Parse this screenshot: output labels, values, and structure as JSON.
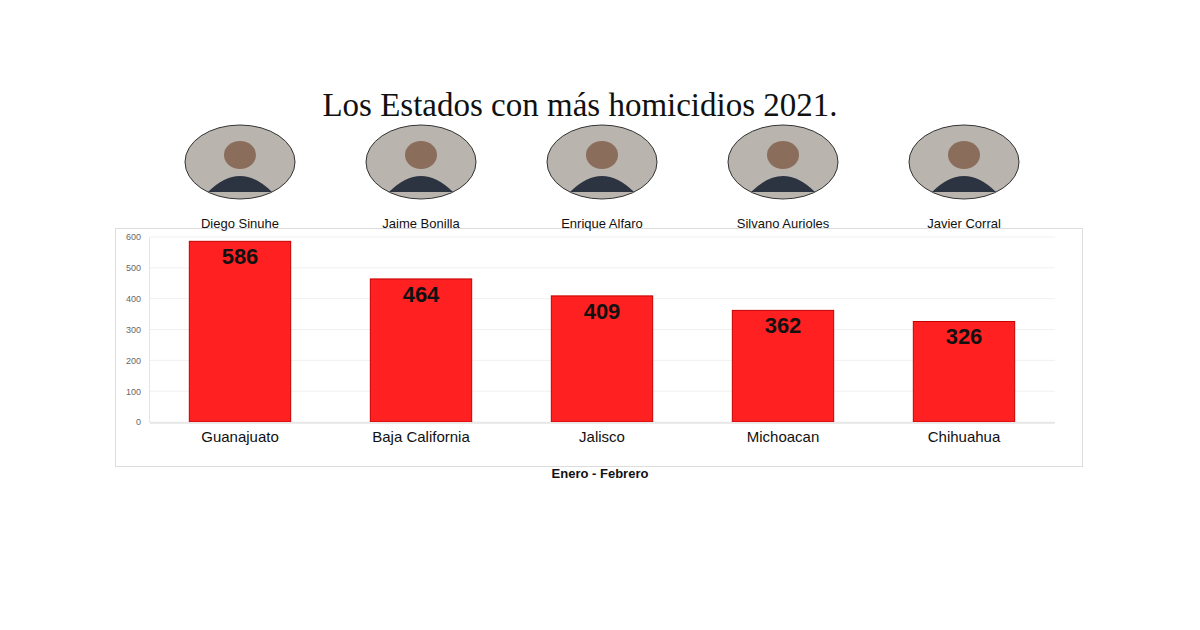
{
  "chart_data": {
    "type": "bar",
    "title": "Los Estados con más homicidios 2021.",
    "annotations": [
      "Diego Sinuhe",
      "Jaime Bonilla",
      "Enrique Alfaro",
      "Silvano Aurioles",
      "Javier Corral"
    ],
    "categories": [
      "Guanajuato",
      "Baja California",
      "Jalisco",
      "Michoacan",
      "Chihuahua"
    ],
    "values": [
      586,
      464,
      409,
      362,
      326
    ],
    "x_label": "Enero - Febrero",
    "color": "#ff2121",
    "ylim": [
      0,
      600
    ],
    "yticks": [
      0,
      100,
      200,
      300,
      400,
      500,
      600
    ],
    "grid": true,
    "data_labels": true
  }
}
